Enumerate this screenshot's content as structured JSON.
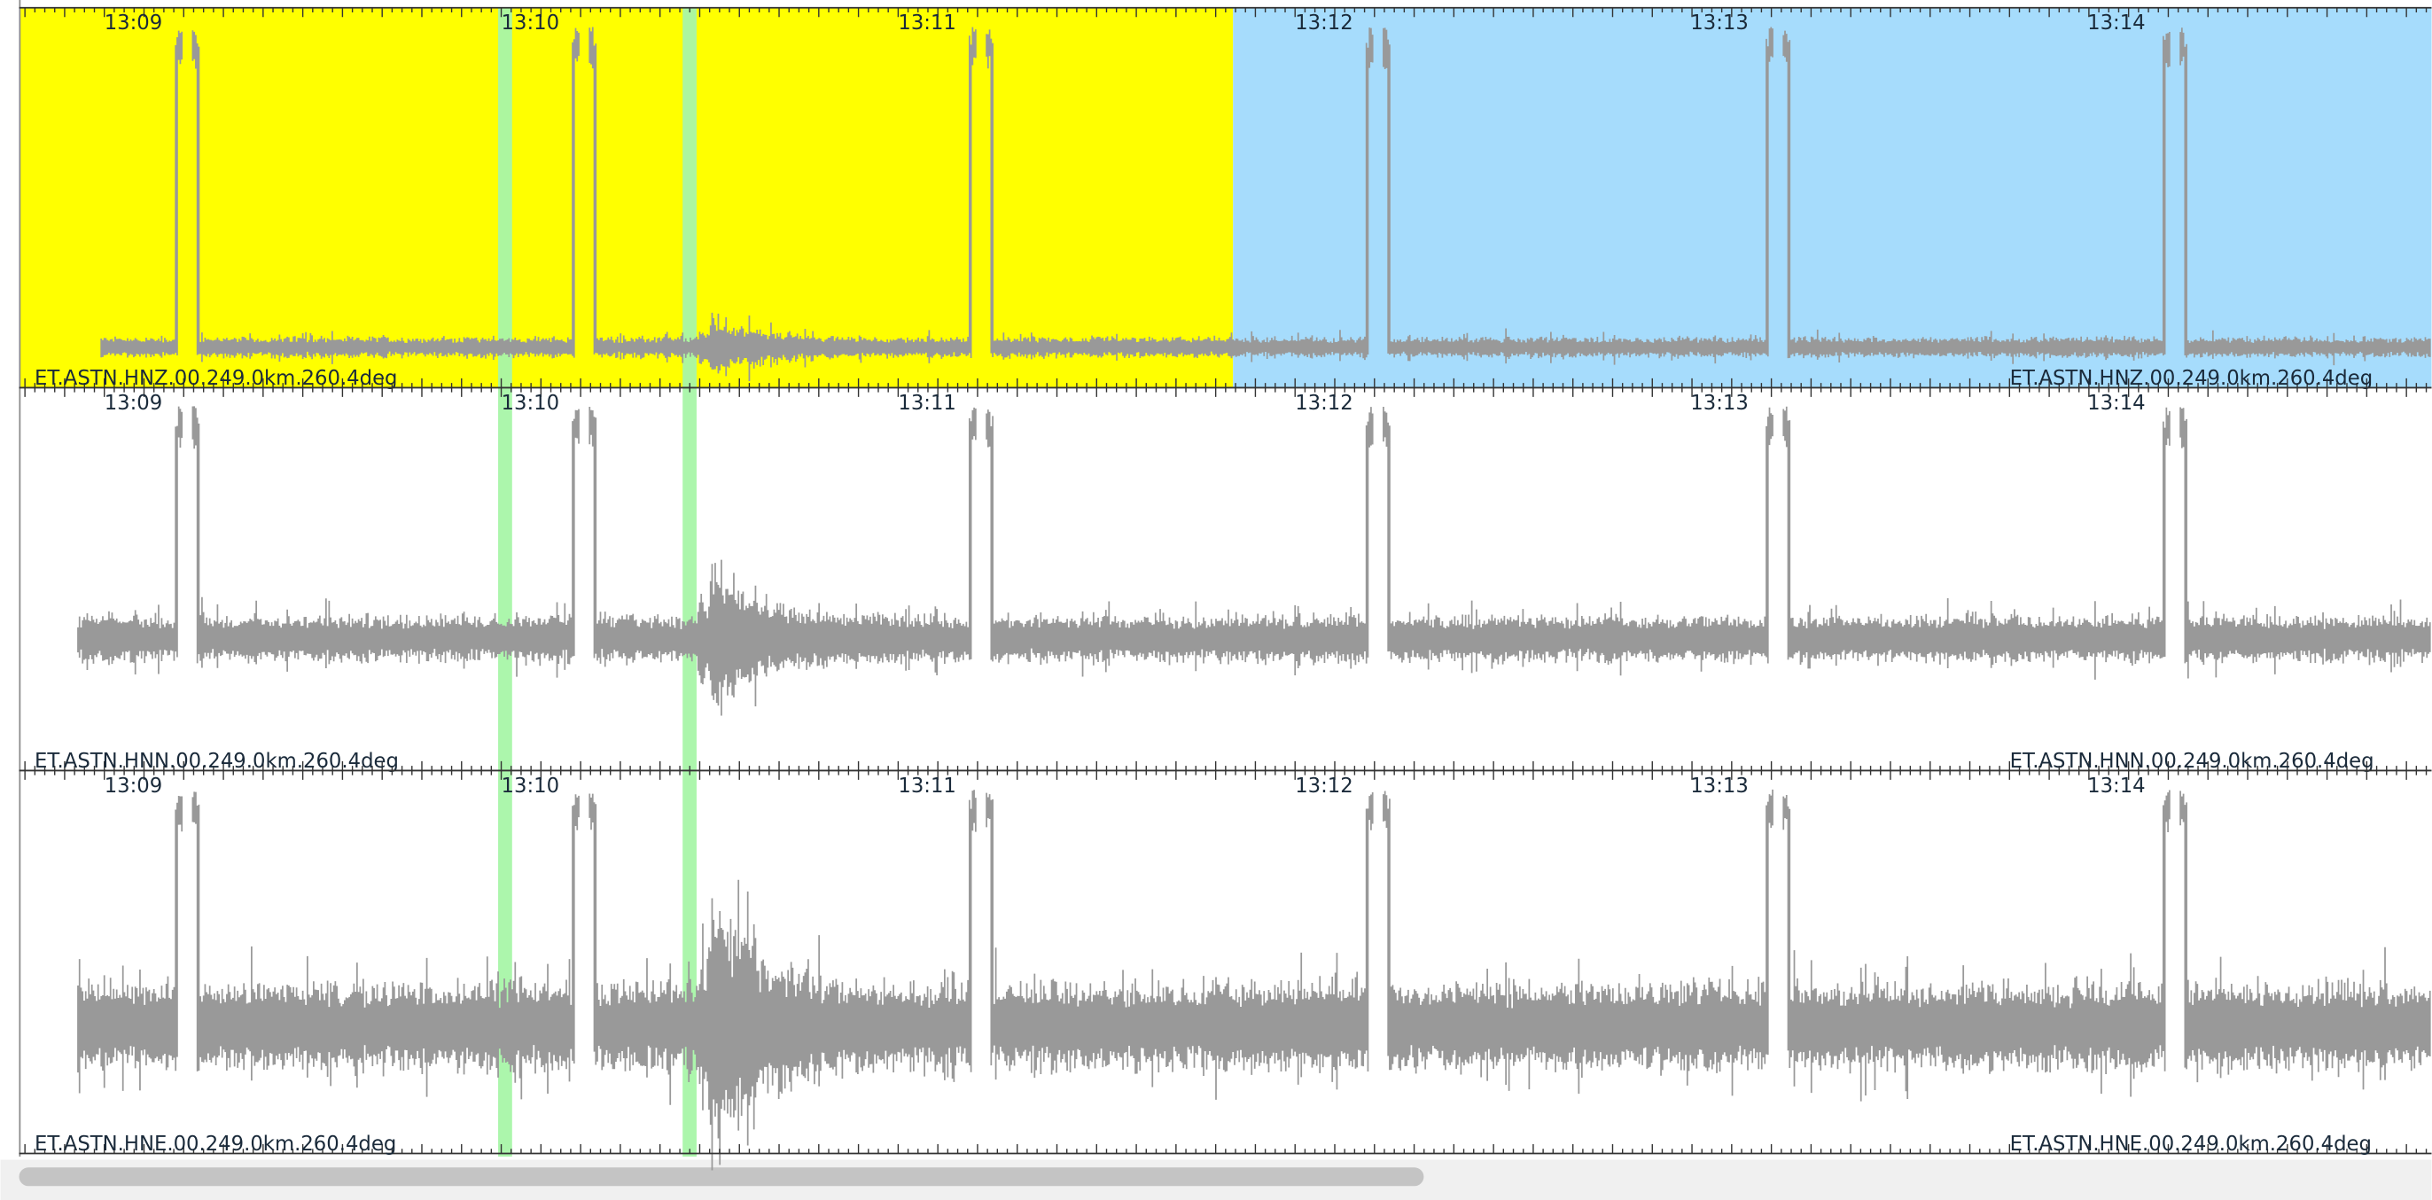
{
  "panels": [
    {
      "time_labels": [
        "13:09",
        "13:10",
        "13:11",
        "13:12",
        "13:13",
        "13:14"
      ],
      "left_label": "ET.ASTN.HNZ.00.249.0km.260.4deg",
      "right_label": "ET.ASTN.HNZ.00.249.0km.260.4deg"
    },
    {
      "time_labels": [
        "13:09",
        "13:10",
        "13:11",
        "13:12",
        "13:13",
        "13:14"
      ],
      "left_label": "ET.ASTN.HNN.00.249.0km.260.4deg",
      "right_label": "ET.ASTN.HNN.00.249.0km.260.4deg"
    },
    {
      "time_labels": [
        "13:09",
        "13:10",
        "13:11",
        "13:12",
        "13:13",
        "13:14"
      ],
      "left_label": "ET.ASTN.HNE.00.249.0km.260.4deg",
      "right_label": "ET.ASTN.HNE.00.249.0km.260.4deg"
    }
  ]
}
